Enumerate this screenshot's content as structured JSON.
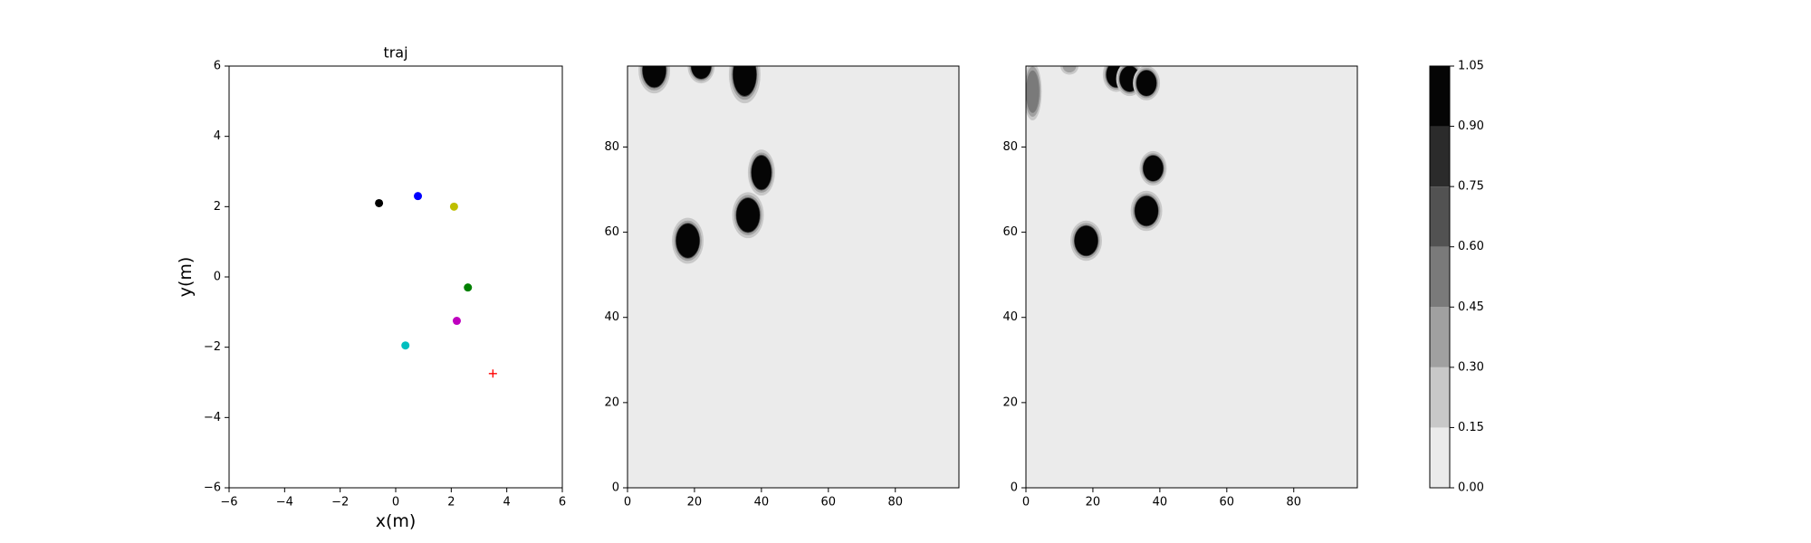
{
  "chart_data": [
    {
      "type": "scatter",
      "title": "traj",
      "xlabel": "x(m)",
      "ylabel": "y(m)",
      "xlim": [
        -6,
        6
      ],
      "ylim": [
        -6,
        6
      ],
      "xticks": [
        "−6",
        "−4",
        "−2",
        "0",
        "2",
        "4",
        "6"
      ],
      "yticks": [
        "−6",
        "−4",
        "−2",
        "0",
        "2",
        "4",
        "6"
      ],
      "points": [
        {
          "x": -0.6,
          "y": 2.1,
          "color": "#000000",
          "marker": "circle"
        },
        {
          "x": 0.8,
          "y": 2.3,
          "color": "#0000ff",
          "marker": "circle"
        },
        {
          "x": 2.1,
          "y": 2.0,
          "color": "#bfbf00",
          "marker": "circle"
        },
        {
          "x": 2.6,
          "y": -0.3,
          "color": "#008000",
          "marker": "circle"
        },
        {
          "x": 2.2,
          "y": -1.25,
          "color": "#bf00bf",
          "marker": "circle"
        },
        {
          "x": 0.35,
          "y": -1.95,
          "color": "#00bfbf",
          "marker": "circle"
        },
        {
          "x": 3.5,
          "y": -2.75,
          "color": "#ff0000",
          "marker": "plus"
        }
      ]
    },
    {
      "type": "heatmap",
      "xlim": [
        0,
        99
      ],
      "ylim": [
        0,
        99
      ],
      "xticks": [
        "0",
        "20",
        "40",
        "60",
        "80"
      ],
      "yticks": [
        "0",
        "20",
        "40",
        "60",
        "80"
      ],
      "background_level": 0.05,
      "blobs": [
        {
          "x": 8,
          "y": 98,
          "rx": 3.5,
          "ry": 4,
          "value": 1.0
        },
        {
          "x": 22,
          "y": 99,
          "rx": 3,
          "ry": 3,
          "value": 1.0
        },
        {
          "x": 35,
          "y": 97,
          "rx": 3.5,
          "ry": 5,
          "value": 1.0
        },
        {
          "x": 40,
          "y": 74,
          "rx": 3,
          "ry": 4,
          "value": 1.0
        },
        {
          "x": 36,
          "y": 64,
          "rx": 3.5,
          "ry": 4,
          "value": 1.0
        },
        {
          "x": 18,
          "y": 58,
          "rx": 3.5,
          "ry": 4,
          "value": 1.0
        }
      ]
    },
    {
      "type": "heatmap",
      "xlim": [
        0,
        99
      ],
      "ylim": [
        0,
        99
      ],
      "xticks": [
        "0",
        "20",
        "40",
        "60",
        "80"
      ],
      "yticks": [
        "0",
        "20",
        "40",
        "60",
        "80"
      ],
      "background_level": 0.05,
      "blobs": [
        {
          "x": 2,
          "y": 93,
          "rx": 2,
          "ry": 5,
          "value": 0.5
        },
        {
          "x": 13,
          "y": 99,
          "rx": 2,
          "ry": 1.5,
          "value": 0.4
        },
        {
          "x": 27,
          "y": 97,
          "rx": 3,
          "ry": 3,
          "value": 0.95
        },
        {
          "x": 31,
          "y": 96,
          "rx": 3,
          "ry": 3,
          "value": 0.9
        },
        {
          "x": 36,
          "y": 95,
          "rx": 3,
          "ry": 3,
          "value": 0.9
        },
        {
          "x": 38,
          "y": 75,
          "rx": 3,
          "ry": 3,
          "value": 1.0
        },
        {
          "x": 36,
          "y": 65,
          "rx": 3.5,
          "ry": 3.5,
          "value": 1.0
        },
        {
          "x": 18,
          "y": 58,
          "rx": 3.5,
          "ry": 3.5,
          "value": 1.0
        }
      ]
    }
  ],
  "colorbar": {
    "levels": [
      0.0,
      0.15,
      0.3,
      0.45,
      0.6,
      0.75,
      0.9,
      1.05
    ],
    "labels": [
      "0.00",
      "0.15",
      "0.30",
      "0.45",
      "0.60",
      "0.75",
      "0.90",
      "1.05"
    ],
    "colors": [
      "#ebebeb",
      "#c8c8c8",
      "#a0a0a0",
      "#7a7a7a",
      "#525252",
      "#2b2b2b",
      "#050505"
    ]
  }
}
